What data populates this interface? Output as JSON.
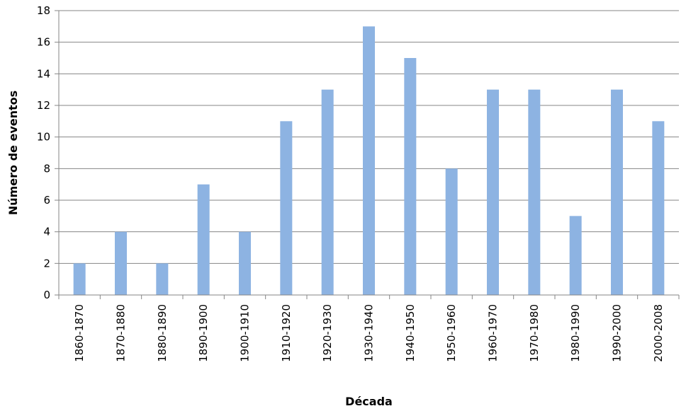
{
  "chart_data": {
    "type": "bar",
    "title": "",
    "xlabel": "Década",
    "ylabel": "Número de eventos",
    "categories": [
      "1860-1870",
      "1870-1880",
      "1880-1890",
      "1890-1900",
      "1900-1910",
      "1910-1920",
      "1920-1930",
      "1930-1940",
      "1940-1950",
      "1950-1960",
      "1960-1970",
      "1970-1980",
      "1980-1990",
      "1990-2000",
      "2000-2008"
    ],
    "values": [
      2,
      4,
      2,
      7,
      4,
      11,
      13,
      17,
      15,
      8,
      13,
      13,
      5,
      13,
      11
    ],
    "ylim": [
      0,
      18
    ],
    "yticks": [
      0,
      2,
      4,
      6,
      8,
      10,
      12,
      14,
      16,
      18
    ],
    "grid": true,
    "legend": "none",
    "bar_color": "#8DB3E2",
    "grid_color": "#868686"
  }
}
